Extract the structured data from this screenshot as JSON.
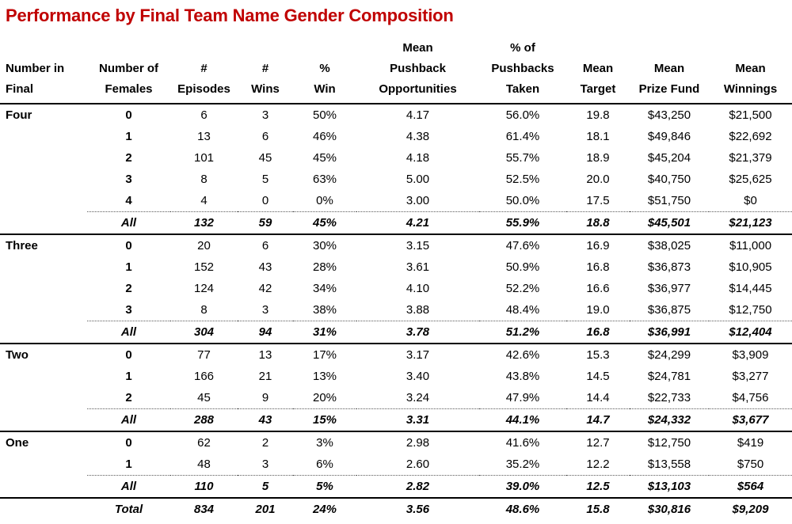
{
  "title": "Performance by Final Team Name Gender Composition",
  "colors": {
    "title": "#C00000",
    "text": "#000000",
    "background": "#FFFFFF",
    "rule": "#000000"
  },
  "table": {
    "columns": [
      {
        "id": "number-in-final",
        "lines": [
          "Number in",
          "Final"
        ],
        "align": "left"
      },
      {
        "id": "number-of-females",
        "lines": [
          "Number of",
          "Females"
        ]
      },
      {
        "id": "episodes",
        "lines": [
          "#",
          "Episodes"
        ]
      },
      {
        "id": "wins",
        "lines": [
          "#",
          "Wins"
        ]
      },
      {
        "id": "win-pct",
        "lines": [
          "%",
          "Win"
        ]
      },
      {
        "id": "mean-pushback-opportunities",
        "lines": [
          "Mean",
          "Pushback",
          "Opportunities"
        ]
      },
      {
        "id": "pct-pushbacks-taken",
        "lines": [
          "% of",
          "Pushbacks",
          "Taken"
        ]
      },
      {
        "id": "mean-target",
        "lines": [
          "Mean",
          "Target"
        ]
      },
      {
        "id": "mean-prize-fund",
        "lines": [
          "Mean",
          "Prize Fund"
        ]
      },
      {
        "id": "mean-winnings",
        "lines": [
          "Mean",
          "Winnings"
        ]
      }
    ],
    "groups": [
      {
        "label": "Four",
        "rows": [
          [
            "0",
            "6",
            "3",
            "50%",
            "4.17",
            "56.0%",
            "19.8",
            "$43,250",
            "$21,500"
          ],
          [
            "1",
            "13",
            "6",
            "46%",
            "4.38",
            "61.4%",
            "18.1",
            "$49,846",
            "$22,692"
          ],
          [
            "2",
            "101",
            "45",
            "45%",
            "4.18",
            "55.7%",
            "18.9",
            "$45,204",
            "$21,379"
          ],
          [
            "3",
            "8",
            "5",
            "63%",
            "5.00",
            "52.5%",
            "20.0",
            "$40,750",
            "$25,625"
          ],
          [
            "4",
            "4",
            "0",
            "0%",
            "3.00",
            "50.0%",
            "17.5",
            "$51,750",
            "$0"
          ]
        ],
        "all_row": [
          "All",
          "132",
          "59",
          "45%",
          "4.21",
          "55.9%",
          "18.8",
          "$45,501",
          "$21,123"
        ]
      },
      {
        "label": "Three",
        "rows": [
          [
            "0",
            "20",
            "6",
            "30%",
            "3.15",
            "47.6%",
            "16.9",
            "$38,025",
            "$11,000"
          ],
          [
            "1",
            "152",
            "43",
            "28%",
            "3.61",
            "50.9%",
            "16.8",
            "$36,873",
            "$10,905"
          ],
          [
            "2",
            "124",
            "42",
            "34%",
            "4.10",
            "52.2%",
            "16.6",
            "$36,977",
            "$14,445"
          ],
          [
            "3",
            "8",
            "3",
            "38%",
            "3.88",
            "48.4%",
            "19.0",
            "$36,875",
            "$12,750"
          ]
        ],
        "all_row": [
          "All",
          "304",
          "94",
          "31%",
          "3.78",
          "51.2%",
          "16.8",
          "$36,991",
          "$12,404"
        ]
      },
      {
        "label": "Two",
        "rows": [
          [
            "0",
            "77",
            "13",
            "17%",
            "3.17",
            "42.6%",
            "15.3",
            "$24,299",
            "$3,909"
          ],
          [
            "1",
            "166",
            "21",
            "13%",
            "3.40",
            "43.8%",
            "14.5",
            "$24,781",
            "$3,277"
          ],
          [
            "2",
            "45",
            "9",
            "20%",
            "3.24",
            "47.9%",
            "14.4",
            "$22,733",
            "$4,756"
          ]
        ],
        "all_row": [
          "All",
          "288",
          "43",
          "15%",
          "3.31",
          "44.1%",
          "14.7",
          "$24,332",
          "$3,677"
        ]
      },
      {
        "label": "One",
        "rows": [
          [
            "0",
            "62",
            "2",
            "3%",
            "2.98",
            "41.6%",
            "12.7",
            "$12,750",
            "$419"
          ],
          [
            "1",
            "48",
            "3",
            "6%",
            "2.60",
            "35.2%",
            "12.2",
            "$13,558",
            "$750"
          ]
        ],
        "all_row": [
          "All",
          "110",
          "5",
          "5%",
          "2.82",
          "39.0%",
          "12.5",
          "$13,103",
          "$564"
        ]
      }
    ],
    "total_row": [
      "Total",
      "834",
      "201",
      "24%",
      "3.56",
      "48.6%",
      "15.8",
      "$30,816",
      "$9,209"
    ]
  }
}
